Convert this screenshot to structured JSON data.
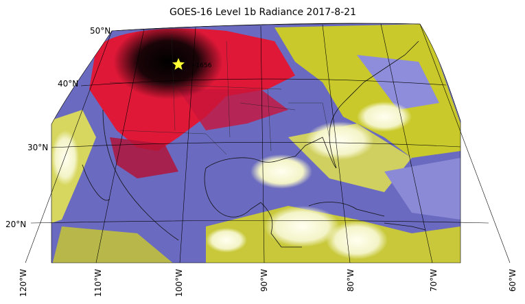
{
  "figure": {
    "title": "GOES-16 Level 1b Radiance 2017-8-21",
    "lat_labels": [
      "50°N",
      "40°N",
      "30°N",
      "20°N"
    ],
    "lon_labels": [
      "120°W",
      "110°W",
      "100°W",
      "90°W",
      "80°W",
      "70°W",
      "60°W"
    ],
    "marker": {
      "symbol": "star",
      "color": "#ffff33",
      "label": "~1656"
    },
    "palette": {
      "cold_red": "#e8173b",
      "dark_center": "#150407",
      "blue": "#5f5fb7",
      "lavender": "#8c8cd8",
      "yellow": "#cfcf2a",
      "cloud_white": "#fbfbd8"
    }
  }
}
